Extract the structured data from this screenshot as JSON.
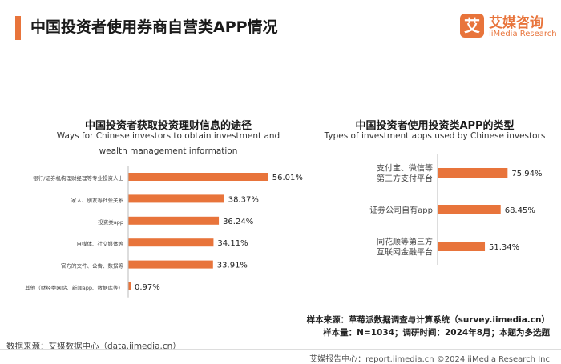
{
  "header": {
    "title": "中国投资者使用券商自营类APP情况"
  },
  "logo": {
    "mark": "艾",
    "name_cn": "艾媒咨询",
    "name_en": "iiMedia Research"
  },
  "chart_data": [
    {
      "type": "bar",
      "orientation": "horizontal",
      "title": "中国投资者获取投资理财信息的途径",
      "subtitle": "Ways for Chinese investors to obtain investment and wealth management information",
      "categories": [
        "银行/证券机构理财经理等专业投资人士",
        "家人、朋友等社会关系",
        "投资类app",
        "自媒体、社交媒体等",
        "官方的文件、公告、数据等",
        "其他（财经类网站、新闻app、数据库等）"
      ],
      "values": [
        56.01,
        38.37,
        36.24,
        34.11,
        33.91,
        0.97
      ],
      "value_labels": [
        "56.01%",
        "38.37%",
        "36.24%",
        "34.11%",
        "33.91%",
        "0.97%"
      ],
      "xlim": [
        0,
        100
      ],
      "bar_color": "#e8743b",
      "grid": false
    },
    {
      "type": "bar",
      "orientation": "horizontal",
      "title": "中国投资者使用投资类APP的类型",
      "subtitle": "Types of investment apps used by Chinese investors",
      "categories": [
        "支付宝、微信等\n第三方支付平台",
        "证券公司自有app",
        "同花顺等第三方\n互联网金融平台"
      ],
      "values": [
        75.94,
        68.45,
        51.34
      ],
      "value_labels": [
        "75.94%",
        "68.45%",
        "51.34%"
      ],
      "xlim": [
        0,
        100
      ],
      "bar_color": "#e8743b",
      "grid": false
    }
  ],
  "source": {
    "left": "数据来源：艾媒数据中心（data.iimedia.cn）",
    "right_line1": "样本来源：草莓派数据调查与计算系统（survey.iimedia.cn）",
    "right_line2": "样本量：N=1034；调研时间：2024年8月；本题为多选题"
  },
  "footer": {
    "text": "艾媒报告中心：report.iimedia.cn    ©2024  iiMedia Research  Inc"
  }
}
